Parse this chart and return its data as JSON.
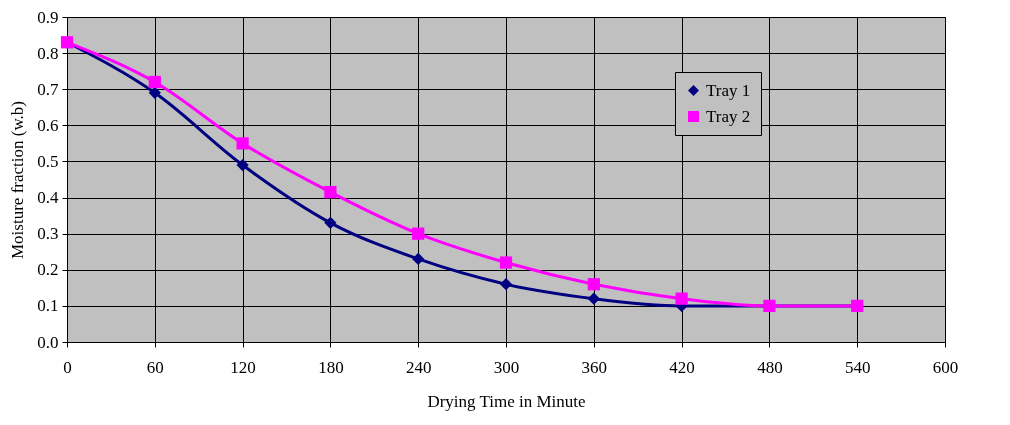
{
  "chart_data": {
    "type": "line",
    "xlabel": "Drying Time in Minute",
    "ylabel": "Moisture fraction (w.b)",
    "x": [
      0,
      60,
      120,
      180,
      240,
      300,
      360,
      420,
      480,
      540
    ],
    "series": [
      {
        "name": "Tray 1",
        "color": "#000080",
        "marker": "diamond",
        "values": [
          0.83,
          0.69,
          0.49,
          0.33,
          0.23,
          0.16,
          0.12,
          0.1,
          0.1,
          0.1
        ]
      },
      {
        "name": "Tray 2",
        "color": "#ff00ff",
        "marker": "square",
        "values": [
          0.83,
          0.72,
          0.55,
          0.415,
          0.3,
          0.22,
          0.16,
          0.12,
          0.1,
          0.1
        ]
      }
    ],
    "xlim": [
      0,
      600
    ],
    "xticks": [
      0,
      60,
      120,
      180,
      240,
      300,
      360,
      420,
      480,
      540,
      600
    ],
    "ylim": [
      0,
      0.9
    ],
    "yticks": [
      {
        "value": 0,
        "label": "0.0"
      },
      {
        "value": 0.1,
        "label": "0.1"
      },
      {
        "value": 0.2,
        "label": "0.2"
      },
      {
        "value": 0.3,
        "label": "0.3"
      },
      {
        "value": 0.4,
        "label": "0.4"
      },
      {
        "value": 0.5,
        "label": "0.5"
      },
      {
        "value": 0.6,
        "label": "0.6"
      },
      {
        "value": 0.7,
        "label": "0.7"
      },
      {
        "value": 0.8,
        "label": "0.8"
      },
      {
        "value": 0.9,
        "label": "0.9"
      }
    ],
    "grid": true,
    "legend": "top right",
    "line_style": "solid"
  }
}
